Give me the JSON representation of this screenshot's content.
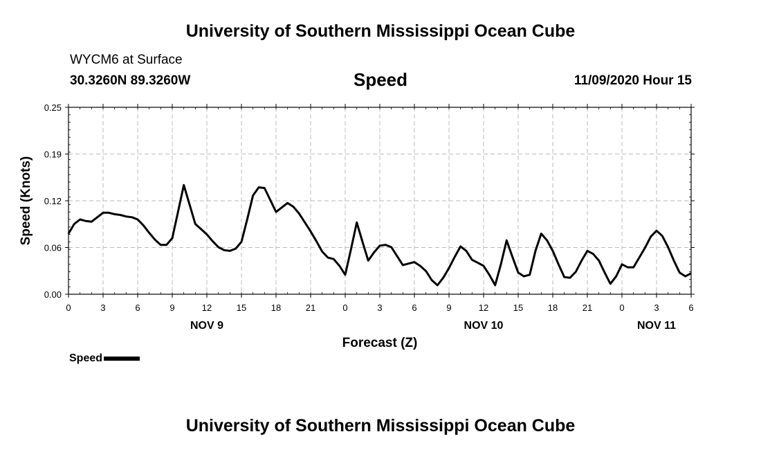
{
  "header": {
    "title_top": "University of Southern Mississippi Ocean Cube",
    "station": "WYCM6 at Surface",
    "coords": "30.3260N 89.3260W",
    "chart_title": "Speed",
    "datetime": "11/09/2020 Hour 15",
    "title_bottom": "University of Southern Mississippi Ocean Cube"
  },
  "legend": {
    "label": "Speed"
  },
  "chart_data": {
    "type": "line",
    "title": "Speed",
    "xlabel": "Forecast (Z)",
    "ylabel": "Speed (Knots)",
    "xlim": [
      0,
      54
    ],
    "ylim": [
      0,
      0.25
    ],
    "yticks": [
      "0.00",
      "0.06",
      "0.12",
      "0.19",
      "0.25"
    ],
    "ytick_values": [
      0,
      0.0625,
      0.125,
      0.1875,
      0.25
    ],
    "xticks": [
      {
        "x": 0,
        "label": "0"
      },
      {
        "x": 3,
        "label": "3"
      },
      {
        "x": 6,
        "label": "6"
      },
      {
        "x": 9,
        "label": "9"
      },
      {
        "x": 12,
        "label": "12"
      },
      {
        "x": 15,
        "label": "15"
      },
      {
        "x": 18,
        "label": "18"
      },
      {
        "x": 21,
        "label": "21"
      },
      {
        "x": 24,
        "label": "0"
      },
      {
        "x": 27,
        "label": "3"
      },
      {
        "x": 30,
        "label": "6"
      },
      {
        "x": 33,
        "label": "9"
      },
      {
        "x": 36,
        "label": "12"
      },
      {
        "x": 39,
        "label": "15"
      },
      {
        "x": 42,
        "label": "18"
      },
      {
        "x": 45,
        "label": "21"
      },
      {
        "x": 48,
        "label": "0"
      },
      {
        "x": 51,
        "label": "3"
      },
      {
        "x": 54,
        "label": "6"
      }
    ],
    "date_labels": [
      {
        "x": 12,
        "label": "NOV 9"
      },
      {
        "x": 36,
        "label": "NOV 10"
      },
      {
        "x": 51,
        "label": "NOV 11"
      }
    ],
    "grid": true,
    "series": [
      {
        "name": "Speed",
        "x": [
          0,
          0.5,
          1,
          1.5,
          2,
          2.5,
          3,
          3.5,
          4,
          4.5,
          5,
          5.5,
          6,
          6.5,
          7,
          7.5,
          8,
          8.5,
          9,
          9.5,
          10,
          10.5,
          11,
          11.5,
          12,
          12.5,
          13,
          13.5,
          14,
          14.5,
          15,
          15.5,
          16,
          16.5,
          17,
          17.5,
          18,
          18.5,
          19,
          19.5,
          20,
          20.5,
          21,
          21.5,
          22,
          22.5,
          23,
          23.5,
          24,
          24.5,
          25,
          25.5,
          26,
          26.5,
          27,
          27.5,
          28,
          28.5,
          29,
          29.5,
          30,
          30.5,
          31,
          31.5,
          32,
          32.5,
          33,
          33.5,
          34,
          34.5,
          35,
          35.5,
          36,
          36.5,
          37,
          37.5,
          38,
          38.5,
          39,
          39.5,
          40,
          40.5,
          41,
          41.5,
          42,
          42.5,
          43,
          43.5,
          44,
          44.5,
          45,
          45.5,
          46,
          46.5,
          47,
          47.5,
          48,
          48.5,
          49,
          49.5,
          50,
          50.5,
          51,
          51.5,
          52,
          52.5,
          53,
          53.5,
          54
        ],
        "values": [
          0.081,
          0.094,
          0.1,
          0.098,
          0.097,
          0.103,
          0.109,
          0.109,
          0.107,
          0.106,
          0.104,
          0.103,
          0.1,
          0.092,
          0.082,
          0.073,
          0.066,
          0.066,
          0.075,
          0.11,
          0.146,
          0.12,
          0.094,
          0.087,
          0.08,
          0.071,
          0.063,
          0.059,
          0.058,
          0.061,
          0.07,
          0.1,
          0.132,
          0.143,
          0.142,
          0.126,
          0.11,
          0.116,
          0.122,
          0.117,
          0.108,
          0.096,
          0.084,
          0.071,
          0.057,
          0.049,
          0.047,
          0.038,
          0.026,
          0.06,
          0.096,
          0.07,
          0.045,
          0.056,
          0.065,
          0.066,
          0.063,
          0.051,
          0.039,
          0.041,
          0.043,
          0.038,
          0.031,
          0.019,
          0.012,
          0.022,
          0.035,
          0.05,
          0.064,
          0.058,
          0.046,
          0.042,
          0.038,
          0.026,
          0.012,
          0.04,
          0.072,
          0.05,
          0.029,
          0.024,
          0.026,
          0.058,
          0.081,
          0.072,
          0.058,
          0.04,
          0.023,
          0.022,
          0.03,
          0.045,
          0.058,
          0.054,
          0.045,
          0.029,
          0.014,
          0.024,
          0.04,
          0.036,
          0.036,
          0.049,
          0.062,
          0.077,
          0.085,
          0.078,
          0.063,
          0.045,
          0.029,
          0.024,
          0.028
        ]
      }
    ]
  }
}
